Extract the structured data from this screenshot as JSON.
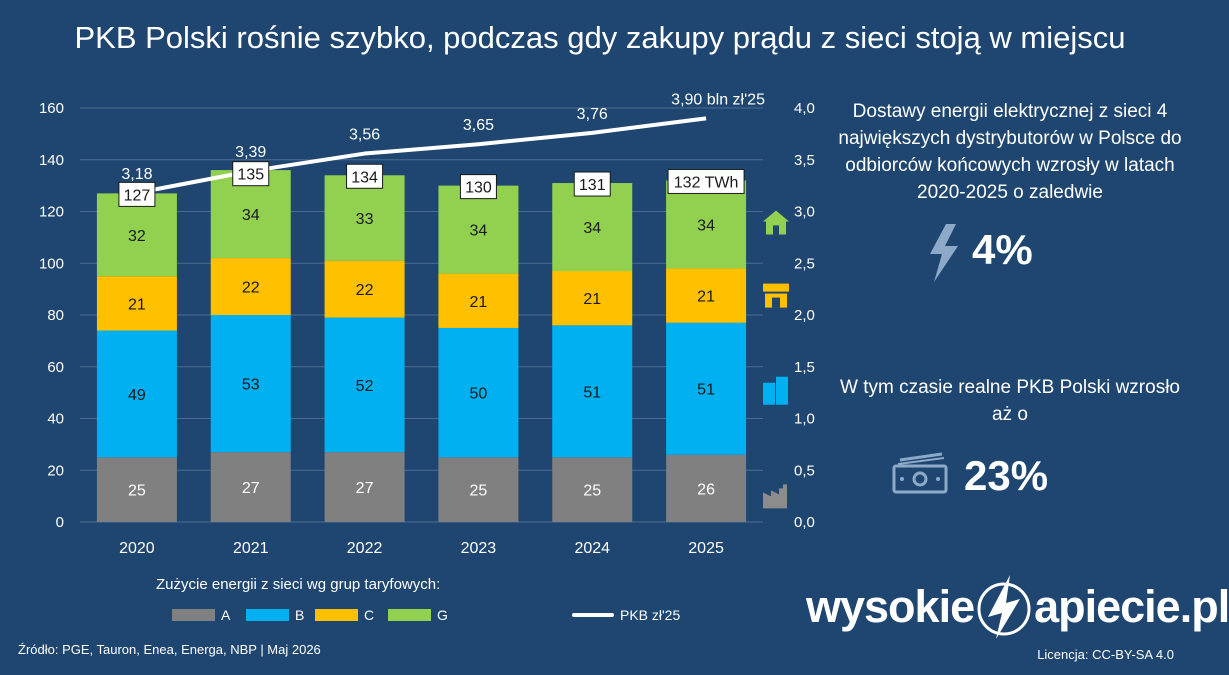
{
  "title": "PKB Polski rośnie szybko, podczas gdy zakupy prądu z sieci stoją w miejscu",
  "chart_data": {
    "type": "bar",
    "stacked": true,
    "categories": [
      "2020",
      "2021",
      "2022",
      "2023",
      "2024",
      "2025"
    ],
    "series": [
      {
        "name": "A",
        "color": "#808080",
        "values": [
          25,
          27,
          27,
          25,
          25,
          26
        ]
      },
      {
        "name": "B",
        "color": "#00b0f0",
        "values": [
          49,
          53,
          52,
          50,
          51,
          51
        ]
      },
      {
        "name": "C",
        "color": "#ffc000",
        "values": [
          21,
          22,
          22,
          21,
          21,
          21
        ]
      },
      {
        "name": "G",
        "color": "#92d050",
        "values": [
          32,
          34,
          33,
          34,
          34,
          34
        ]
      }
    ],
    "totals": [
      127,
      135,
      134,
      130,
      131,
      132
    ],
    "total_labels": [
      "127",
      "135",
      "134",
      "130",
      "131",
      "132 TWh"
    ],
    "line_series": {
      "name": "PKB zł'25",
      "color": "#ffffff",
      "values": [
        3.18,
        3.39,
        3.56,
        3.65,
        3.76,
        3.9
      ],
      "labels": [
        "3,18",
        "3,39",
        "3,56",
        "3,65",
        "3,76",
        "3,90 bln zł'25"
      ]
    },
    "y_left": {
      "min": 0,
      "max": 160,
      "ticks": [
        "0",
        "20",
        "40",
        "60",
        "80",
        "100",
        "120",
        "140",
        "160"
      ]
    },
    "y_right": {
      "min": 0,
      "max": 4,
      "ticks": [
        "0,0",
        "0,5",
        "1,0",
        "1,5",
        "2,0",
        "2,5",
        "3,0",
        "3,5",
        "4,0"
      ]
    },
    "grid": true,
    "legend_title": "Zużycie energii z sieci wg grup taryfowych:",
    "segment_icons": [
      "factory-icon",
      "office-building-icon",
      "shop-icon",
      "house-icon"
    ]
  },
  "side": {
    "text1": "Dostawy energii elektrycznej z sieci 4 największych dystrybutorów w Polsce do odbiorców końcowych wzrosły w latach 2020-2025 o zaledwie",
    "pct_energy": "4%",
    "text2": "W tym czasie realne PKB Polski wzrosło aż o",
    "pct_gdp": "23%"
  },
  "legend": {
    "title": "Zużycie energii z sieci wg grup taryfowych:",
    "a": "A",
    "b": "B",
    "c": "C",
    "g": "G",
    "line": "PKB zł'25"
  },
  "footer": {
    "source": "Źródło: PGE, Tauron, Enea, Energa, NBP  |  Maj 2026",
    "license": "Licencja: CC-BY-SA 4.0",
    "logo_left": "wysokie",
    "logo_right": "apiecie.pl"
  },
  "colors": {
    "background": "#1e4670",
    "accent_icon": "#8ca9c8"
  }
}
